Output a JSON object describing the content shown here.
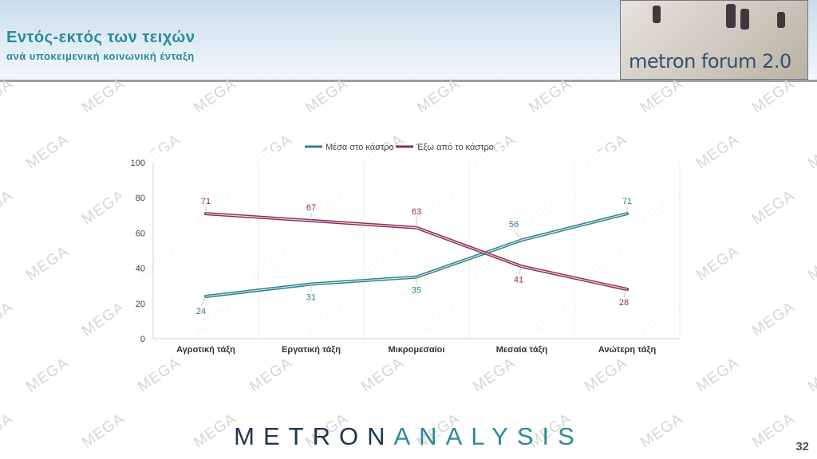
{
  "header": {
    "title": "Εντός-εκτός των τειχών",
    "subtitle": "ανά υποκειμενική κοινωνική ένταξη",
    "logo_text": "metron forum 2.0"
  },
  "watermark_text": "MEGA",
  "footer": {
    "brand_part1": "METRON",
    "brand_part2": "ANALYSIS",
    "page_number": "32"
  },
  "colors": {
    "title": "#2a8a9a",
    "series_inside": "#2e7f8c",
    "series_outside": "#8a2b5a",
    "brand_dark": "#1f3450",
    "brand_teal": "#2a8a9a"
  },
  "chart_data": {
    "type": "line",
    "categories": [
      "Αγροτική τάξη",
      "Εργατική τάξη",
      "Μικρομεσαίοι",
      "Μεσαία τάξη",
      "Ανώτερη τάξη"
    ],
    "series": [
      {
        "name": "Μέσα στο κάστρο",
        "values": [
          24,
          31,
          35,
          56,
          71
        ],
        "color": "#2e7f8c"
      },
      {
        "name": "Έξω από το κάστρο",
        "values": [
          71,
          67,
          63,
          41,
          28
        ],
        "color": "#8a2b5a"
      }
    ],
    "ylim": [
      0,
      100
    ],
    "yticks": [
      0,
      20,
      40,
      60,
      80,
      100
    ],
    "grid": "vertical",
    "legend": "top-center"
  }
}
